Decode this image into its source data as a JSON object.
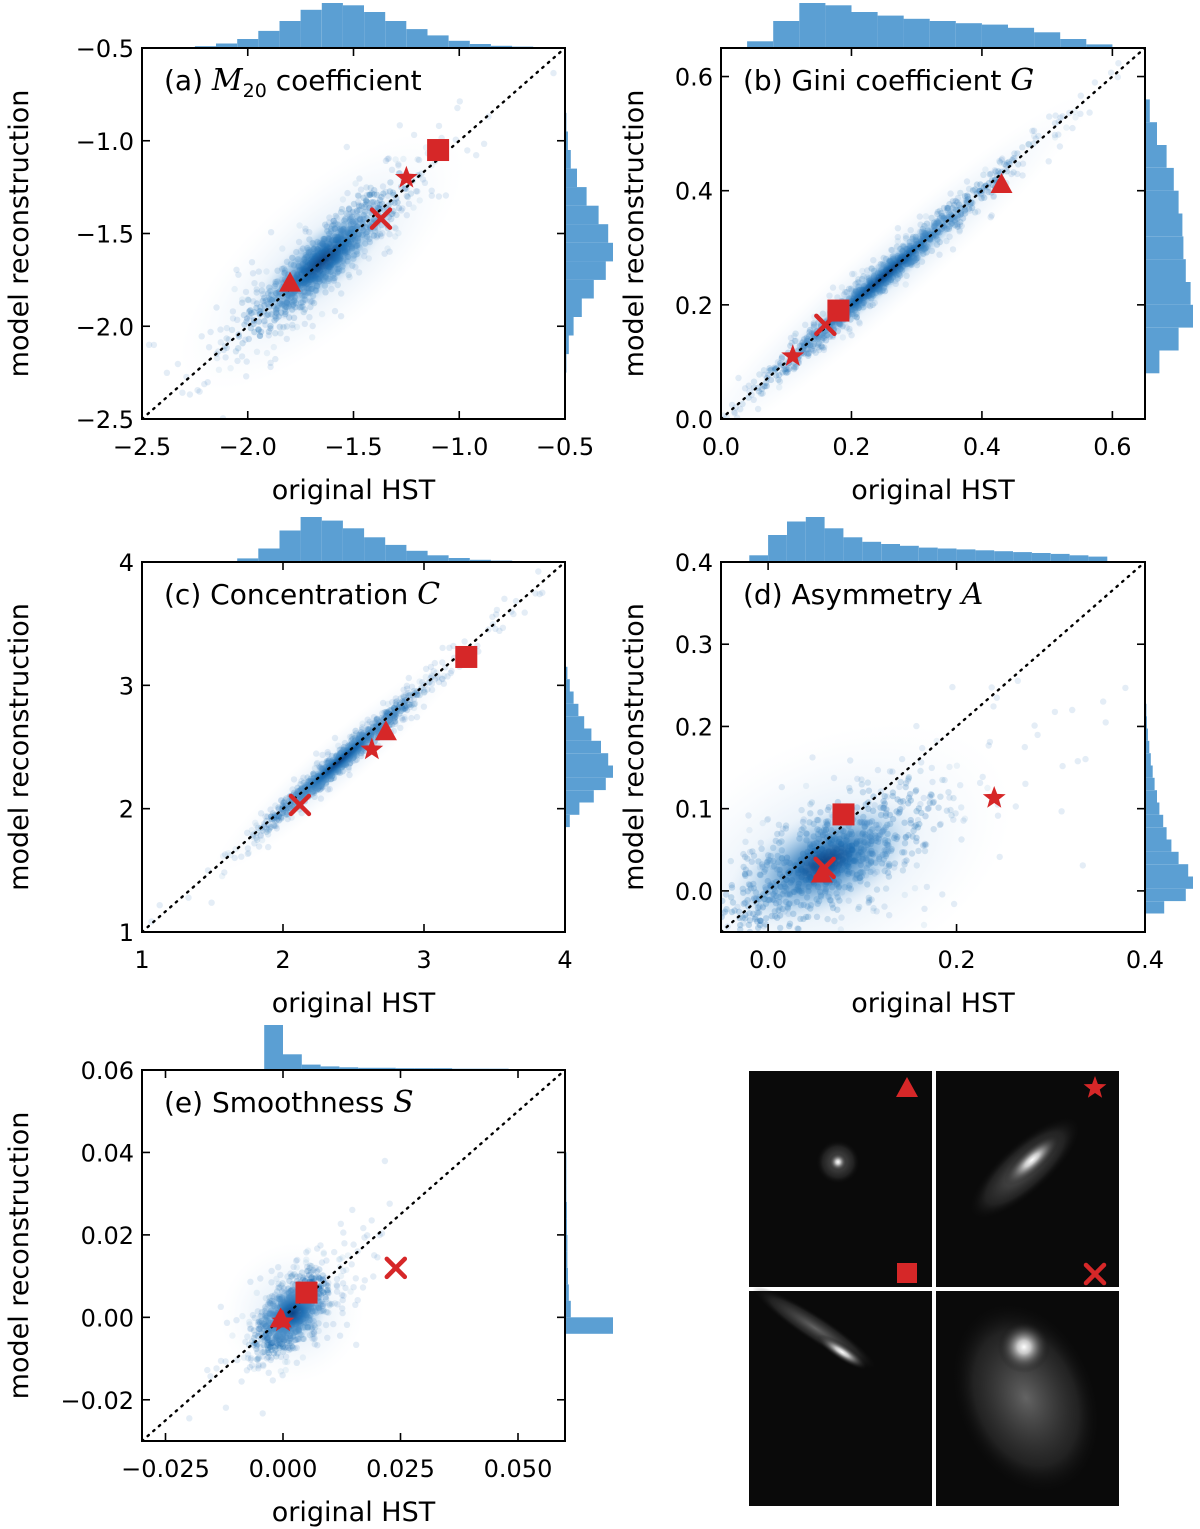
{
  "figure": {
    "xlabel": "original HST",
    "ylabel": "model reconstruction",
    "marker_color": "#d62728",
    "density_color": "#1f6fb4",
    "hist_color": "#5b9fd3",
    "thumbnail_markers": [
      "triangle",
      "star",
      "square",
      "x"
    ]
  },
  "chart_data": [
    {
      "type": "scatter",
      "panel": "a",
      "title_prefix": "(a) ",
      "title_math": "M",
      "title_sub": "20",
      "title_suffix": " coefficient",
      "xlabel": "original HST",
      "ylabel": "model reconstruction",
      "xlim": [
        -2.5,
        -0.5
      ],
      "ylim": [
        -2.5,
        -0.5
      ],
      "xticks": [
        -2.5,
        -2.0,
        -1.5,
        -1.0,
        -0.5
      ],
      "yticks": [
        -2.5,
        -2.0,
        -1.5,
        -1.0,
        -0.5
      ],
      "xtick_labels": [
        "−2.5",
        "−2.0",
        "−1.5",
        "−1.0",
        "−0.5"
      ],
      "ytick_labels": [
        "−2.5",
        "−2.0",
        "−1.5",
        "−1.0",
        "−0.5"
      ],
      "density_center": [
        -1.65,
        -1.65
      ],
      "density_spread": [
        0.2,
        0.09
      ],
      "density_slope": 1.0,
      "diagonal": true,
      "markers": [
        {
          "shape": "square",
          "x": -1.1,
          "y": -1.05
        },
        {
          "shape": "star",
          "x": -1.25,
          "y": -1.2
        },
        {
          "shape": "x",
          "x": -1.37,
          "y": -1.42
        },
        {
          "shape": "triangle",
          "x": -1.8,
          "y": -1.77
        }
      ],
      "hist_x": {
        "bins": [
          -2.3,
          -2.2,
          -2.1,
          -2.0,
          -1.9,
          -1.8,
          -1.7,
          -1.6,
          -1.5,
          -1.4,
          -1.3,
          -1.2,
          -1.1,
          -1.0,
          -0.9,
          -0.8,
          -0.7
        ],
        "counts": [
          2,
          4,
          10,
          20,
          38,
          60,
          85,
          100,
          95,
          80,
          60,
          42,
          28,
          16,
          9,
          5,
          3
        ]
      },
      "hist_y": {
        "bins": [
          -2.2,
          -2.1,
          -2.0,
          -1.9,
          -1.8,
          -1.7,
          -1.6,
          -1.5,
          -1.4,
          -1.3,
          -1.2,
          -1.1,
          -1.0,
          -0.9,
          -0.8
        ],
        "counts": [
          3,
          8,
          18,
          35,
          60,
          85,
          100,
          90,
          70,
          45,
          25,
          12,
          6,
          3,
          2
        ]
      }
    },
    {
      "type": "scatter",
      "panel": "b",
      "title_prefix": "(b) Gini coefficient ",
      "title_math": "G",
      "title_sub": "",
      "title_suffix": "",
      "xlabel": "original HST",
      "ylabel": "model reconstruction",
      "xlim": [
        0.0,
        0.65
      ],
      "ylim": [
        0.0,
        0.65
      ],
      "xticks": [
        0.0,
        0.2,
        0.4,
        0.6
      ],
      "yticks": [
        0.0,
        0.2,
        0.4,
        0.6
      ],
      "xtick_labels": [
        "0.0",
        "0.2",
        "0.4",
        "0.6"
      ],
      "ytick_labels": [
        "0.0",
        "0.2",
        "0.4",
        "0.6"
      ],
      "density_center": [
        0.25,
        0.25
      ],
      "density_spread": [
        0.1,
        0.015
      ],
      "density_slope": 1.0,
      "diagonal": true,
      "markers": [
        {
          "shape": "triangle",
          "x": 0.43,
          "y": 0.41
        },
        {
          "shape": "square",
          "x": 0.18,
          "y": 0.19
        },
        {
          "shape": "x",
          "x": 0.16,
          "y": 0.165
        },
        {
          "shape": "star",
          "x": 0.11,
          "y": 0.11
        }
      ],
      "hist_x": {
        "bins": [
          0.06,
          0.1,
          0.14,
          0.18,
          0.22,
          0.26,
          0.3,
          0.34,
          0.38,
          0.42,
          0.46,
          0.5,
          0.54,
          0.58
        ],
        "counts": [
          15,
          60,
          100,
          95,
          80,
          72,
          65,
          60,
          55,
          52,
          45,
          35,
          20,
          8
        ]
      },
      "hist_y": {
        "bins": [
          0.1,
          0.14,
          0.18,
          0.22,
          0.26,
          0.3,
          0.34,
          0.38,
          0.42,
          0.46,
          0.5,
          0.54
        ],
        "counts": [
          30,
          70,
          100,
          95,
          85,
          80,
          78,
          70,
          60,
          45,
          25,
          10
        ]
      }
    },
    {
      "type": "scatter",
      "panel": "c",
      "title_prefix": "(c) Concentration ",
      "title_math": "C",
      "title_sub": "",
      "title_suffix": "",
      "xlabel": "original HST",
      "ylabel": "model reconstruction",
      "xlim": [
        1,
        4
      ],
      "ylim": [
        1,
        4
      ],
      "xticks": [
        1,
        2,
        3,
        4
      ],
      "yticks": [
        1,
        2,
        3,
        4
      ],
      "xtick_labels": [
        "1",
        "2",
        "3",
        "4"
      ],
      "ytick_labels": [
        "1",
        "2",
        "3",
        "4"
      ],
      "density_center": [
        2.4,
        2.38
      ],
      "density_spread": [
        0.28,
        0.05
      ],
      "density_slope": 1.0,
      "diagonal": true,
      "markers": [
        {
          "shape": "square",
          "x": 3.3,
          "y": 3.23
        },
        {
          "shape": "triangle",
          "x": 2.73,
          "y": 2.62
        },
        {
          "shape": "star",
          "x": 2.63,
          "y": 2.48
        },
        {
          "shape": "x",
          "x": 2.12,
          "y": 2.03
        }
      ],
      "hist_x": {
        "bins": [
          1.75,
          1.9,
          2.05,
          2.2,
          2.35,
          2.5,
          2.65,
          2.8,
          2.95,
          3.1,
          3.25,
          3.4,
          3.55
        ],
        "counts": [
          8,
          30,
          70,
          100,
          92,
          75,
          55,
          38,
          25,
          15,
          9,
          5,
          3
        ]
      },
      "hist_y": {
        "bins": [
          1.9,
          2.0,
          2.1,
          2.2,
          2.3,
          2.4,
          2.5,
          2.6,
          2.7,
          2.8,
          2.9,
          3.0,
          3.1
        ],
        "counts": [
          10,
          30,
          60,
          85,
          100,
          90,
          75,
          55,
          40,
          28,
          18,
          10,
          5
        ]
      }
    },
    {
      "type": "scatter",
      "panel": "d",
      "title_prefix": "(d) Asymmetry ",
      "title_math": "A",
      "title_sub": "",
      "title_suffix": "",
      "xlabel": "original HST",
      "ylabel": "model reconstruction",
      "xlim": [
        -0.05,
        0.4
      ],
      "ylim": [
        -0.05,
        0.4
      ],
      "xticks": [
        0.0,
        0.2,
        0.4
      ],
      "yticks": [
        0.0,
        0.1,
        0.2,
        0.3,
        0.4
      ],
      "xtick_labels": [
        "0.0",
        "0.2",
        "0.4"
      ],
      "ytick_labels": [
        "0.0",
        "0.1",
        "0.2",
        "0.3",
        "0.4"
      ],
      "density_center": [
        0.06,
        0.035
      ],
      "density_spread": [
        0.06,
        0.035
      ],
      "density_slope": 0.55,
      "diagonal": true,
      "markers": [
        {
          "shape": "square",
          "x": 0.08,
          "y": 0.093
        },
        {
          "shape": "star",
          "x": 0.24,
          "y": 0.113
        },
        {
          "shape": "x",
          "x": 0.06,
          "y": 0.028
        },
        {
          "shape": "triangle",
          "x": 0.057,
          "y": 0.02
        }
      ],
      "hist_x": {
        "bins": [
          -0.01,
          0.01,
          0.03,
          0.05,
          0.07,
          0.09,
          0.11,
          0.13,
          0.15,
          0.17,
          0.19,
          0.21,
          0.23,
          0.25,
          0.27,
          0.29,
          0.31,
          0.33,
          0.35
        ],
        "counts": [
          15,
          60,
          90,
          100,
          75,
          55,
          45,
          40,
          36,
          32,
          30,
          28,
          26,
          24,
          22,
          20,
          18,
          15,
          12
        ]
      },
      "hist_y": {
        "bins": [
          -0.02,
          -0.005,
          0.01,
          0.025,
          0.04,
          0.055,
          0.07,
          0.085,
          0.1,
          0.115,
          0.13,
          0.145,
          0.16,
          0.175,
          0.19,
          0.205,
          0.22,
          0.235
        ],
        "counts": [
          40,
          85,
          100,
          90,
          70,
          55,
          45,
          38,
          30,
          25,
          20,
          16,
          12,
          9,
          6,
          4,
          3,
          2
        ]
      }
    },
    {
      "type": "scatter",
      "panel": "e",
      "title_prefix": "(e) Smoothness ",
      "title_math": "S",
      "title_sub": "",
      "title_suffix": "",
      "xlabel": "original HST",
      "ylabel": "model reconstruction",
      "xlim": [
        -0.03,
        0.06
      ],
      "ylim": [
        -0.03,
        0.06
      ],
      "xticks": [
        -0.025,
        0.0,
        0.025,
        0.05
      ],
      "yticks": [
        -0.02,
        0.0,
        0.02,
        0.04,
        0.06
      ],
      "xtick_labels": [
        "−0.025",
        "0.000",
        "0.025",
        "0.050"
      ],
      "ytick_labels": [
        "−0.02",
        "0.00",
        "0.02",
        "0.04",
        "0.06"
      ],
      "density_center": [
        0.002,
        0.001
      ],
      "density_spread": [
        0.004,
        0.004
      ],
      "density_slope": 0.8,
      "diagonal": true,
      "markers": [
        {
          "shape": "square",
          "x": 0.005,
          "y": 0.006
        },
        {
          "shape": "x",
          "x": 0.024,
          "y": 0.012
        },
        {
          "shape": "triangle",
          "x": -0.0005,
          "y": -0.0005
        },
        {
          "shape": "star",
          "x": 0.0,
          "y": -0.001
        }
      ],
      "hist_x": {
        "bins": [
          -0.002,
          0.002,
          0.006,
          0.01,
          0.014,
          0.018,
          0.022,
          0.026,
          0.03,
          0.034,
          0.038,
          0.042,
          0.046,
          0.05,
          0.054
        ],
        "counts": [
          100,
          35,
          12,
          8,
          6,
          5,
          5,
          4,
          4,
          4,
          3,
          3,
          3,
          2,
          2
        ]
      },
      "hist_y": {
        "bins": [
          -0.002,
          0.002,
          0.006,
          0.01,
          0.014,
          0.018,
          0.022,
          0.026,
          0.03,
          0.034,
          0.038,
          0.042,
          0.046,
          0.05
        ],
        "counts": [
          100,
          12,
          8,
          6,
          5,
          5,
          4,
          4,
          3,
          3,
          3,
          2,
          2,
          2
        ]
      }
    }
  ]
}
